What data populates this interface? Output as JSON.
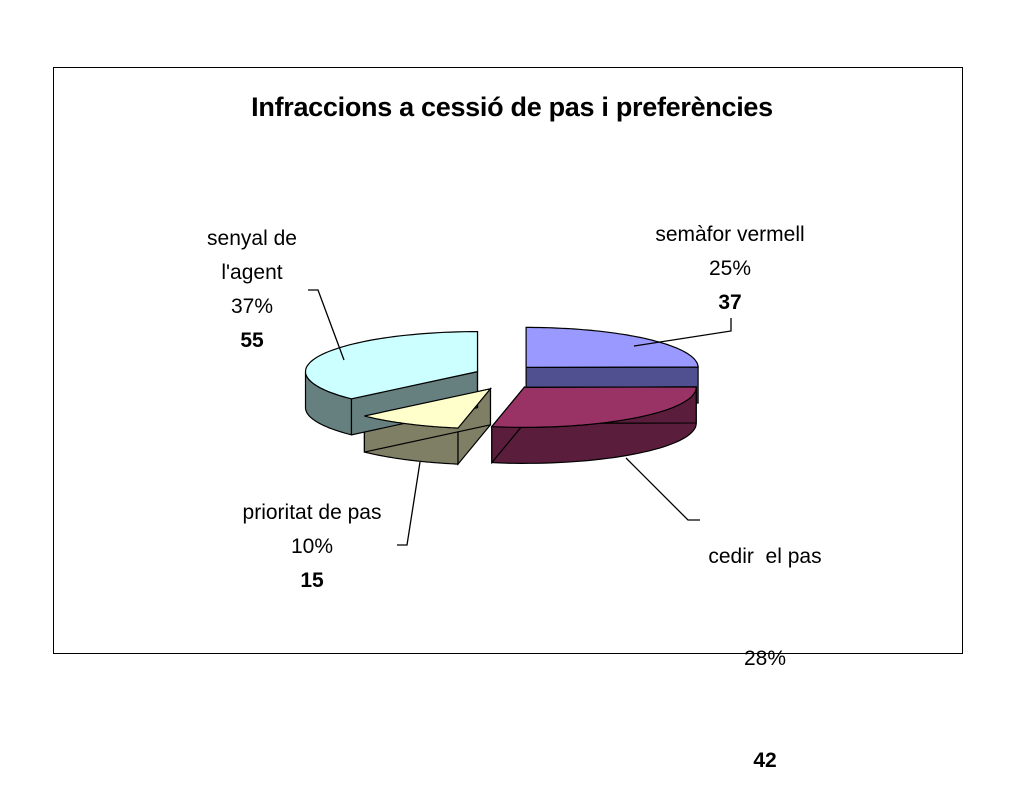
{
  "chart_data": {
    "type": "pie",
    "title": "Infraccions a cessió de pas i preferències",
    "slices": [
      {
        "label": "semàfor vermell",
        "percent": "25%",
        "value": 37,
        "color": "#9999ff",
        "side": "#505090"
      },
      {
        "label": "cedir  el pas",
        "percent": "28%",
        "value": 42,
        "color": "#993366",
        "side": "#5a1e3c"
      },
      {
        "label": "prioritat de pas",
        "percent": "10%",
        "value": 15,
        "color": "#ffffcc",
        "side": "#7f7f66"
      },
      {
        "label": "senyal de l'agent",
        "label_lines": [
          "senyal de",
          "l'agent"
        ],
        "percent": "37%",
        "value": 55,
        "color": "#ccffff",
        "side": "#668080"
      }
    ],
    "exploded": true,
    "legend": "none"
  }
}
